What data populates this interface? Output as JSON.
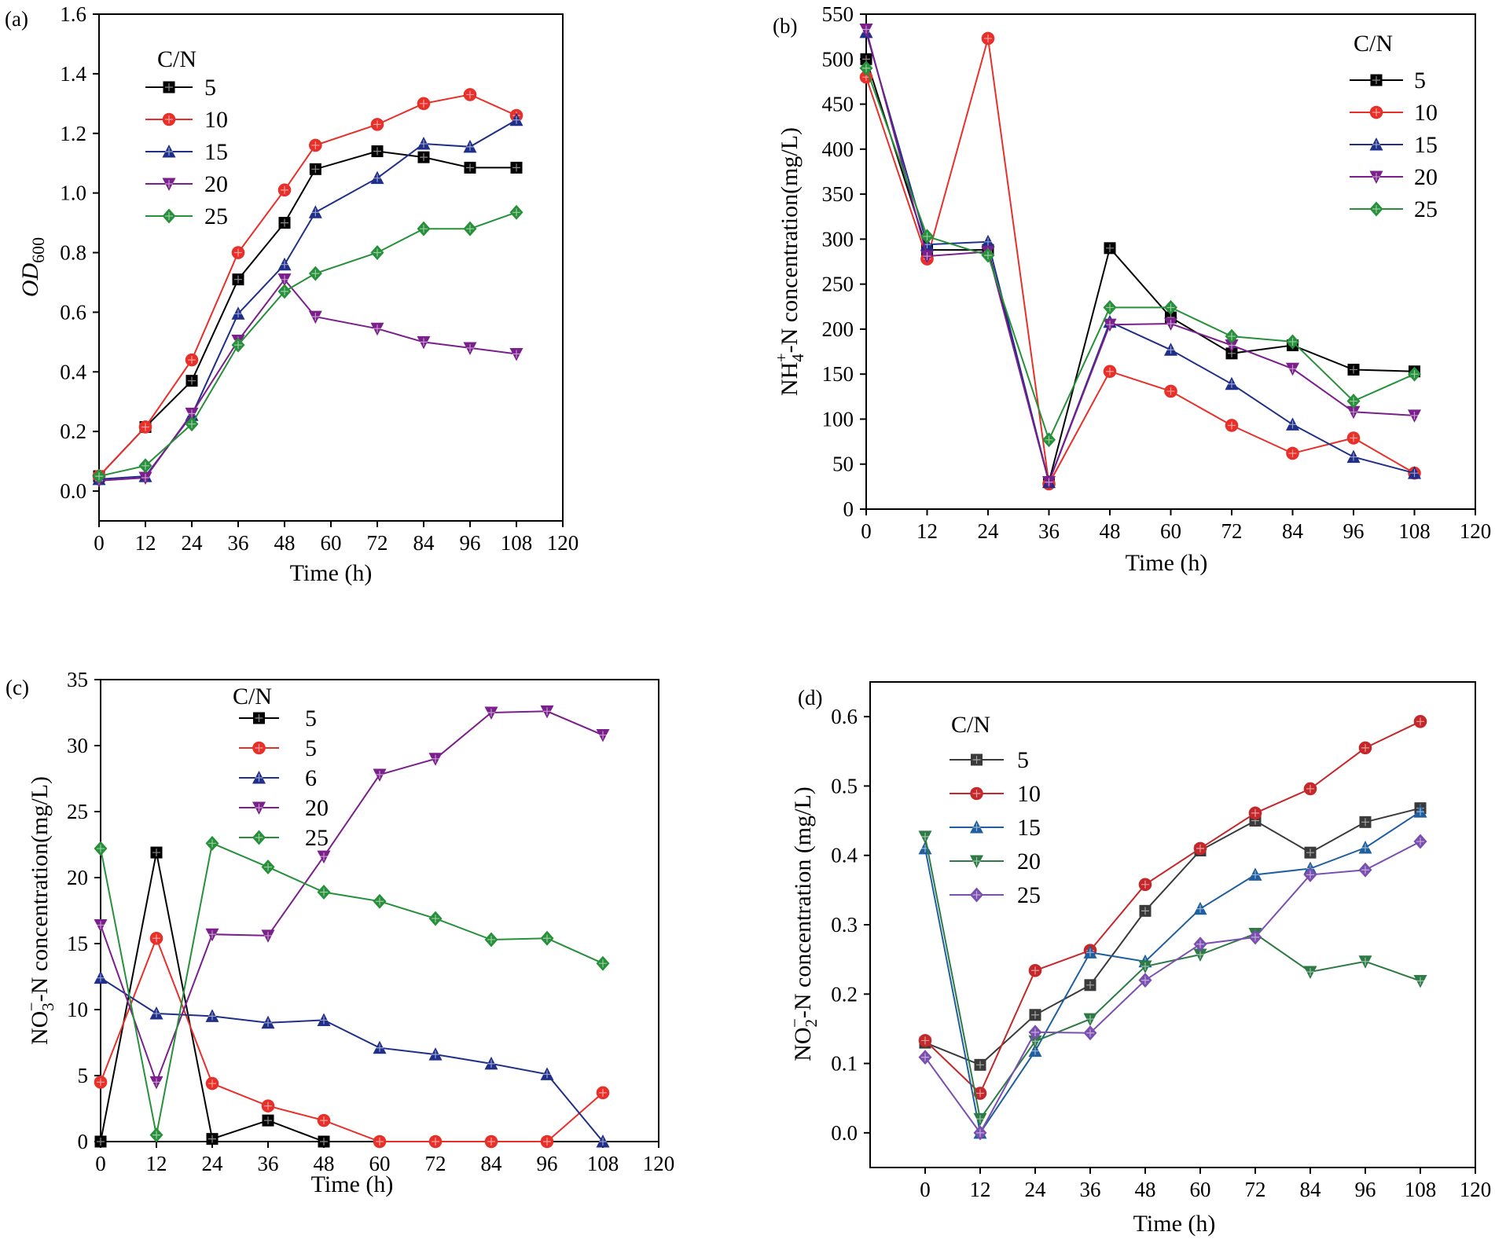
{
  "figure": {
    "panels": [
      "a",
      "b",
      "c",
      "d"
    ]
  },
  "chart_data": [
    {
      "panel": "(a)",
      "type": "line",
      "xlabel": "Time (h)",
      "ylabel": "OD",
      "ylabel_sub": "600",
      "xlim": [
        0,
        120
      ],
      "ylim": [
        -0.1,
        1.6
      ],
      "xticks": [
        0,
        12,
        24,
        36,
        48,
        60,
        72,
        84,
        96,
        108,
        120
      ],
      "yticks": [
        0.0,
        0.2,
        0.4,
        0.6,
        0.8,
        1.0,
        1.2,
        1.4,
        1.6
      ],
      "ytick_labels": [
        "0.0",
        "0.2",
        "0.4",
        "0.6",
        "0.8",
        "1.0",
        "1.2",
        "1.4",
        "1.6"
      ],
      "legend": {
        "title": "C/N",
        "placement": "top-left"
      },
      "series": [
        {
          "name": "5",
          "color": "#000000",
          "marker": "square",
          "points": [
            [
              0,
              0.05
            ],
            [
              12,
              0.215
            ],
            [
              24,
              0.37
            ],
            [
              36,
              0.71
            ],
            [
              48,
              0.9
            ],
            [
              56,
              1.08
            ],
            [
              72,
              1.14
            ],
            [
              84,
              1.12
            ],
            [
              96,
              1.085
            ],
            [
              108,
              1.085
            ]
          ]
        },
        {
          "name": "10",
          "color": "#e8302a",
          "marker": "circle",
          "points": [
            [
              0,
              0.05
            ],
            [
              12,
              0.215
            ],
            [
              24,
              0.44
            ],
            [
              36,
              0.8
            ],
            [
              48,
              1.01
            ],
            [
              56,
              1.16
            ],
            [
              72,
              1.23
            ],
            [
              84,
              1.3
            ],
            [
              96,
              1.33
            ],
            [
              108,
              1.26
            ]
          ]
        },
        {
          "name": "15",
          "color": "#1f2f8a",
          "marker": "triangle-up",
          "points": [
            [
              0,
              0.04
            ],
            [
              12,
              0.05
            ],
            [
              24,
              0.255
            ],
            [
              36,
              0.595
            ],
            [
              48,
              0.76
            ],
            [
              56,
              0.935
            ],
            [
              72,
              1.05
            ],
            [
              84,
              1.165
            ],
            [
              96,
              1.155
            ],
            [
              108,
              1.245
            ]
          ]
        },
        {
          "name": "20",
          "color": "#7a1f8c",
          "marker": "triangle-down",
          "points": [
            [
              0,
              0.035
            ],
            [
              12,
              0.045
            ],
            [
              24,
              0.26
            ],
            [
              36,
              0.505
            ],
            [
              48,
              0.71
            ],
            [
              56,
              0.585
            ],
            [
              72,
              0.545
            ],
            [
              84,
              0.5
            ],
            [
              96,
              0.48
            ],
            [
              108,
              0.46
            ]
          ]
        },
        {
          "name": "25",
          "color": "#27903a",
          "marker": "diamond",
          "points": [
            [
              0,
              0.05
            ],
            [
              12,
              0.085
            ],
            [
              24,
              0.225
            ],
            [
              36,
              0.49
            ],
            [
              48,
              0.67
            ],
            [
              56,
              0.73
            ],
            [
              72,
              0.8
            ],
            [
              84,
              0.88
            ],
            [
              96,
              0.88
            ],
            [
              108,
              0.935
            ]
          ]
        }
      ]
    },
    {
      "panel": "(b)",
      "type": "line",
      "xlabel": "Time (h)",
      "ylabel": "NH",
      "ylabel_sub": "4",
      "ylabel_sup": "+",
      "ylabel_rest": "-N concentration(mg/L)",
      "xlim": [
        0,
        120
      ],
      "ylim": [
        0,
        550
      ],
      "xticks": [
        0,
        12,
        24,
        36,
        48,
        60,
        72,
        84,
        96,
        108,
        120
      ],
      "yticks": [
        0,
        50,
        100,
        150,
        200,
        250,
        300,
        350,
        400,
        450,
        500,
        550
      ],
      "ytick_labels": [
        "0",
        "50",
        "100",
        "150",
        "200",
        "250",
        "300",
        "350",
        "400",
        "450",
        "500",
        "550"
      ],
      "legend": {
        "title": "C/N",
        "placement": "top-right"
      },
      "series": [
        {
          "name": "5",
          "color": "#000000",
          "marker": "square",
          "points": [
            [
              0,
              500
            ],
            [
              12,
              288
            ],
            [
              24,
              288
            ],
            [
              36,
              30
            ],
            [
              48,
              290
            ],
            [
              60,
              213
            ],
            [
              72,
              173
            ],
            [
              84,
              182
            ],
            [
              96,
              155
            ],
            [
              108,
              153
            ]
          ]
        },
        {
          "name": "10",
          "color": "#e8302a",
          "marker": "circle",
          "points": [
            [
              0,
              480
            ],
            [
              12,
              278
            ],
            [
              24,
              523
            ],
            [
              36,
              28
            ],
            [
              48,
              153
            ],
            [
              60,
              131
            ],
            [
              72,
              93
            ],
            [
              84,
              62
            ],
            [
              96,
              79
            ],
            [
              108,
              40
            ]
          ]
        },
        {
          "name": "15",
          "color": "#1f2f8a",
          "marker": "triangle-up",
          "points": [
            [
              0,
              530
            ],
            [
              12,
              294
            ],
            [
              24,
              297
            ],
            [
              36,
              30
            ],
            [
              48,
              208
            ],
            [
              60,
              177
            ],
            [
              72,
              139
            ],
            [
              84,
              94
            ],
            [
              96,
              58
            ],
            [
              108,
              40
            ]
          ]
        },
        {
          "name": "20",
          "color": "#7a1f8c",
          "marker": "triangle-down",
          "points": [
            [
              0,
              533
            ],
            [
              12,
              281
            ],
            [
              24,
              286
            ],
            [
              36,
              30
            ],
            [
              48,
              205
            ],
            [
              60,
              206
            ],
            [
              72,
              182
            ],
            [
              84,
              156
            ],
            [
              96,
              108
            ],
            [
              108,
              104
            ]
          ]
        },
        {
          "name": "25",
          "color": "#27903a",
          "marker": "diamond",
          "points": [
            [
              0,
              490
            ],
            [
              12,
              303
            ],
            [
              24,
              282
            ],
            [
              36,
              77
            ],
            [
              48,
              224
            ],
            [
              60,
              224
            ],
            [
              72,
              192
            ],
            [
              84,
              186
            ],
            [
              96,
              120
            ],
            [
              108,
              150
            ]
          ]
        }
      ]
    },
    {
      "panel": "(c)",
      "type": "line",
      "xlabel": "Time (h)",
      "ylabel": "NO",
      "ylabel_sub": "3",
      "ylabel_sup": "−",
      "ylabel_rest": "-N concentration(mg/L)",
      "xlim": [
        0,
        120
      ],
      "ylim": [
        0,
        35
      ],
      "xticks": [
        0,
        12,
        24,
        36,
        48,
        60,
        72,
        84,
        96,
        108,
        120
      ],
      "yticks": [
        0,
        5,
        10,
        15,
        20,
        25,
        30,
        35
      ],
      "ytick_labels": [
        "0",
        "5",
        "10",
        "15",
        "20",
        "25",
        "30",
        "35"
      ],
      "legend": {
        "title": "C/N",
        "placement": "top-left"
      },
      "series": [
        {
          "name": "5",
          "color": "#000000",
          "marker": "square",
          "points": [
            [
              0,
              0
            ],
            [
              12,
              21.9
            ],
            [
              24,
              0.2
            ],
            [
              36,
              1.6
            ],
            [
              48,
              0
            ]
          ]
        },
        {
          "name": "5",
          "color": "#e8302a",
          "marker": "circle",
          "points": [
            [
              0,
              4.5
            ],
            [
              12,
              15.4
            ],
            [
              24,
              4.4
            ],
            [
              36,
              2.7
            ],
            [
              48,
              1.6
            ],
            [
              60,
              0
            ],
            [
              72,
              0
            ],
            [
              84,
              0
            ],
            [
              96,
              0
            ],
            [
              108,
              3.7
            ]
          ]
        },
        {
          "name": "6",
          "color": "#1f2f8a",
          "marker": "triangle-up",
          "points": [
            [
              0,
              12.4
            ],
            [
              12,
              9.7
            ],
            [
              24,
              9.5
            ],
            [
              36,
              9.0
            ],
            [
              48,
              9.2
            ],
            [
              60,
              7.1
            ],
            [
              72,
              6.6
            ],
            [
              84,
              5.9
            ],
            [
              96,
              5.1
            ],
            [
              108,
              0
            ]
          ]
        },
        {
          "name": "20",
          "color": "#7a1f8c",
          "marker": "triangle-down",
          "points": [
            [
              0,
              16.4
            ],
            [
              12,
              4.5
            ],
            [
              24,
              15.7
            ],
            [
              36,
              15.6
            ],
            [
              48,
              21.6
            ],
            [
              60,
              27.8
            ],
            [
              72,
              29.0
            ],
            [
              84,
              32.5
            ],
            [
              96,
              32.6
            ],
            [
              108,
              30.8
            ]
          ]
        },
        {
          "name": "25",
          "color": "#27903a",
          "marker": "diamond",
          "points": [
            [
              0,
              22.2
            ],
            [
              12,
              0.5
            ],
            [
              24,
              22.6
            ],
            [
              36,
              20.8
            ],
            [
              48,
              18.9
            ],
            [
              60,
              18.2
            ],
            [
              72,
              16.9
            ],
            [
              84,
              15.3
            ],
            [
              96,
              15.4
            ],
            [
              108,
              13.5
            ]
          ]
        }
      ]
    },
    {
      "panel": "(d)",
      "type": "line",
      "xlabel": "Time (h)",
      "ylabel": "NO",
      "ylabel_sub": "2",
      "ylabel_sup": "−",
      "ylabel_rest": "-N concentration (mg/L)",
      "xlim": [
        -12,
        120
      ],
      "ylim": [
        -0.05,
        0.65
      ],
      "xticks": [
        0,
        12,
        24,
        36,
        48,
        60,
        72,
        84,
        96,
        108,
        120
      ],
      "yticks": [
        0.0,
        0.1,
        0.2,
        0.3,
        0.4,
        0.5,
        0.6
      ],
      "ytick_labels": [
        "0.0",
        "0.1",
        "0.2",
        "0.3",
        "0.4",
        "0.5",
        "0.6"
      ],
      "legend": {
        "title": "C/N",
        "placement": "top-left"
      },
      "series": [
        {
          "name": "5",
          "color": "#3a3a3a",
          "marker": "square",
          "points": [
            [
              0,
              0.13
            ],
            [
              12,
              0.098
            ],
            [
              24,
              0.17
            ],
            [
              36,
              0.213
            ],
            [
              48,
              0.32
            ],
            [
              60,
              0.407
            ],
            [
              72,
              0.45
            ],
            [
              84,
              0.404
            ],
            [
              96,
              0.448
            ],
            [
              108,
              0.468
            ]
          ]
        },
        {
          "name": "10",
          "color": "#c4282a",
          "marker": "circle",
          "points": [
            [
              0,
              0.133
            ],
            [
              12,
              0.057
            ],
            [
              24,
              0.234
            ],
            [
              36,
              0.263
            ],
            [
              48,
              0.358
            ],
            [
              60,
              0.41
            ],
            [
              72,
              0.461
            ],
            [
              84,
              0.496
            ],
            [
              96,
              0.555
            ],
            [
              108,
              0.593
            ]
          ]
        },
        {
          "name": "15",
          "color": "#1f5fa0",
          "marker": "triangle-up",
          "points": [
            [
              0,
              0.41
            ],
            [
              12,
              0.0
            ],
            [
              24,
              0.118
            ],
            [
              36,
              0.26
            ],
            [
              48,
              0.247
            ],
            [
              60,
              0.323
            ],
            [
              72,
              0.372
            ],
            [
              84,
              0.381
            ],
            [
              96,
              0.411
            ],
            [
              108,
              0.463
            ]
          ]
        },
        {
          "name": "20",
          "color": "#2d7a45",
          "marker": "triangle-down",
          "points": [
            [
              0,
              0.427
            ],
            [
              12,
              0.02
            ],
            [
              24,
              0.132
            ],
            [
              36,
              0.164
            ],
            [
              48,
              0.24
            ],
            [
              60,
              0.257
            ],
            [
              72,
              0.287
            ],
            [
              84,
              0.232
            ],
            [
              96,
              0.247
            ],
            [
              108,
              0.219
            ]
          ]
        },
        {
          "name": "25",
          "color": "#7b4fb0",
          "marker": "diamond",
          "points": [
            [
              0,
              0.109
            ],
            [
              12,
              0.0
            ],
            [
              24,
              0.145
            ],
            [
              36,
              0.144
            ],
            [
              48,
              0.22
            ],
            [
              60,
              0.272
            ],
            [
              72,
              0.282
            ],
            [
              84,
              0.372
            ],
            [
              96,
              0.379
            ],
            [
              108,
              0.42
            ]
          ]
        }
      ]
    }
  ]
}
